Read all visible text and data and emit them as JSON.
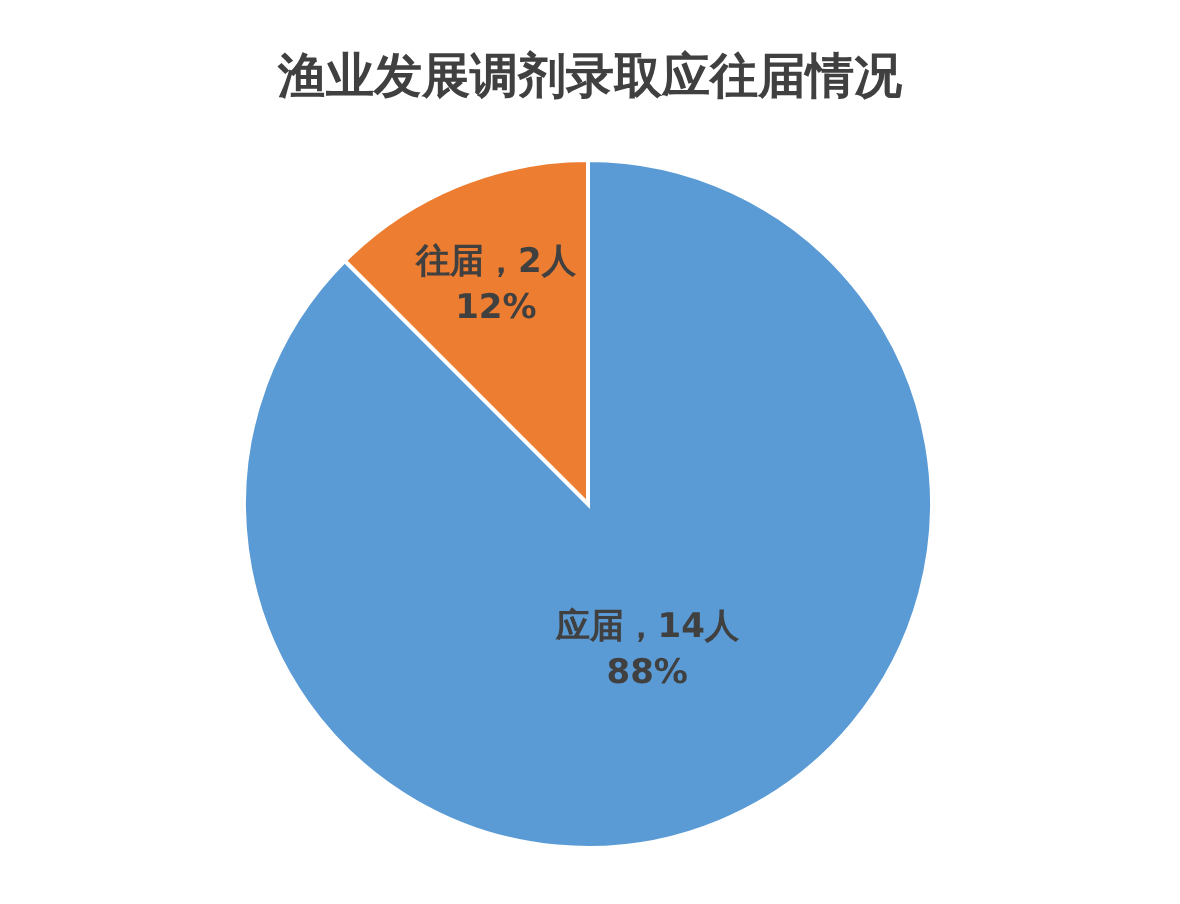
{
  "chart_data": {
    "type": "pie",
    "title": "渔业发展调剂录取应往届情况",
    "categories": [
      "应届",
      "往届"
    ],
    "values": [
      14,
      2
    ],
    "colors": [
      "#5b9bd5",
      "#ed7d31"
    ],
    "value_labels": [
      "，14人\n88%",
      "，2人\n12%"
    ],
    "legend": false
  }
}
